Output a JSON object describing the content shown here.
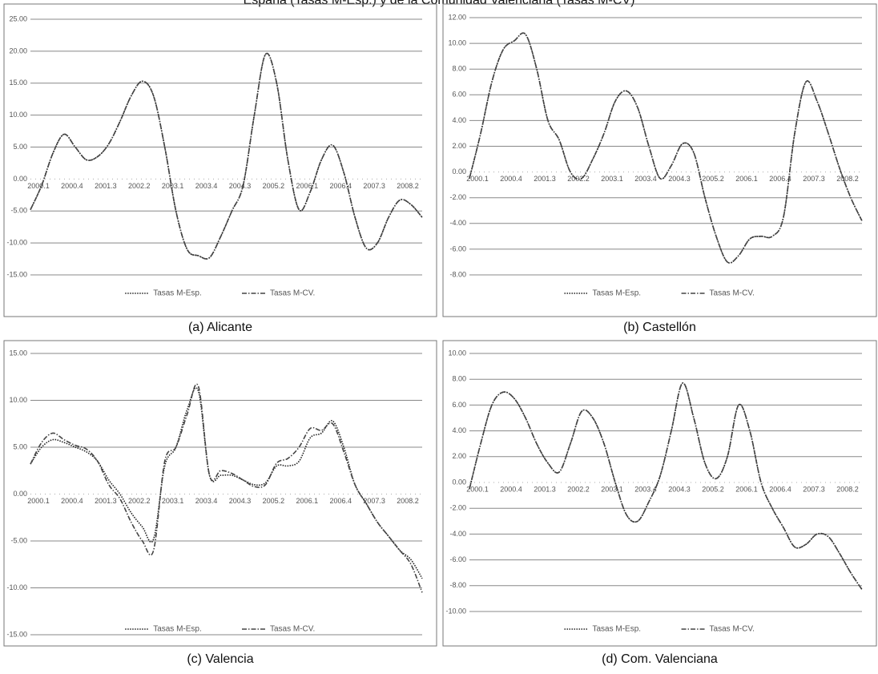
{
  "title": "España (Tasas M-Esp.) y de la Comunidad Valenciana (Tasas M-CV)",
  "chart_data": [
    {
      "type": "line",
      "caption": "(a) Alicante",
      "categories": [
        "2000.1",
        null,
        null,
        "2000.4",
        null,
        null,
        "2001.3",
        null,
        null,
        "2002.2",
        null,
        null,
        "2003.1",
        null,
        null,
        "2003.4",
        null,
        null,
        "2004.3",
        null,
        null,
        "2005.2",
        null,
        null,
        "2006.1",
        null,
        null,
        "2006.4",
        null,
        null,
        "2007.3",
        null,
        null,
        "2008.2",
        null,
        null
      ],
      "series": [
        {
          "name": "Tasas M-Esp.",
          "color": "#222222",
          "dash": "dotted",
          "values": [
            -4.8,
            -1,
            4,
            7,
            5,
            3,
            3.5,
            5.5,
            9,
            13,
            15.3,
            13,
            5,
            -5,
            -11,
            -12,
            -12.3,
            -9,
            -5,
            -1,
            10,
            19.5,
            15,
            3,
            -4.8,
            -2,
            3,
            5.3,
            1,
            -6,
            -10.8,
            -10,
            -6,
            -3.3,
            -4,
            -6
          ]
        },
        {
          "name": "Tasas M-CV.",
          "color": "#444444",
          "dash": "dashdot",
          "values": [
            -4.8,
            -1,
            4,
            7,
            5,
            3,
            3.5,
            5.5,
            9,
            13,
            15.3,
            13,
            5,
            -5,
            -11,
            -12,
            -12.3,
            -9,
            -5,
            -1,
            10,
            19.5,
            15,
            3,
            -4.8,
            -2,
            3,
            5.3,
            1,
            -6,
            -10.8,
            -10,
            -6,
            -3.3,
            -4,
            -6
          ]
        }
      ],
      "ylim": [
        -15,
        25
      ],
      "yticks": [
        {
          "value": -15,
          "label": "-15.00"
        },
        {
          "value": -10,
          "label": "-10.00"
        },
        {
          "value": -5,
          "label": "-5.00"
        },
        {
          "value": 0,
          "label": "0.00"
        },
        {
          "value": 5,
          "label": "5.00"
        },
        {
          "value": 10,
          "label": "10.00"
        },
        {
          "value": 15,
          "label": "15.00"
        },
        {
          "value": 20,
          "label": "20.00"
        },
        {
          "value": 25,
          "label": "25.00"
        }
      ],
      "grid": true,
      "legend": "bottom"
    },
    {
      "type": "line",
      "caption": "(b) Castellón",
      "categories": [
        "2000.1",
        null,
        null,
        "2000.4",
        null,
        null,
        "2001.3",
        null,
        null,
        "2002.2",
        null,
        null,
        "2003.1",
        null,
        null,
        "2003.4",
        null,
        null,
        "2004.3",
        null,
        null,
        "2005.2",
        null,
        null,
        "2006.1",
        null,
        null,
        "2006.4",
        null,
        null,
        "2007.3",
        null,
        null,
        "2008.2",
        null,
        null
      ],
      "series": [
        {
          "name": "Tasas M-Esp.",
          "color": "#222222",
          "dash": "dotted",
          "values": [
            -0.5,
            3,
            7,
            9.5,
            10.2,
            10.7,
            8,
            4,
            2.5,
            0,
            -0.5,
            1,
            3,
            5.5,
            6.3,
            5,
            2,
            -0.5,
            0.5,
            2.2,
            1.5,
            -2,
            -5,
            -7,
            -6.5,
            -5.2,
            -5,
            -5,
            -3.5,
            3,
            7,
            5.5,
            3,
            0.3,
            -2,
            -3.8
          ]
        },
        {
          "name": "Tasas M-CV.",
          "color": "#444444",
          "dash": "dashdot",
          "values": [
            -0.5,
            3,
            7,
            9.5,
            10.2,
            10.7,
            8,
            4,
            2.5,
            0,
            -0.5,
            1,
            3,
            5.5,
            6.3,
            5,
            2,
            -0.5,
            0.5,
            2.2,
            1.5,
            -2,
            -5,
            -7,
            -6.5,
            -5.2,
            -5,
            -5,
            -3.5,
            3,
            7,
            5.5,
            3,
            0.3,
            -2,
            -3.8
          ]
        }
      ],
      "ylim": [
        -8,
        12
      ],
      "yticks": [
        {
          "value": -8,
          "label": "-8.00"
        },
        {
          "value": -6,
          "label": "-6.00"
        },
        {
          "value": -4,
          "label": "-4.00"
        },
        {
          "value": -2,
          "label": "-2.00"
        },
        {
          "value": 0,
          "label": "0.00"
        },
        {
          "value": 2,
          "label": "2.00"
        },
        {
          "value": 4,
          "label": "4.00"
        },
        {
          "value": 6,
          "label": "6.00"
        },
        {
          "value": 8,
          "label": "8.00"
        },
        {
          "value": 10,
          "label": "10.00"
        },
        {
          "value": 12,
          "label": "12.00"
        }
      ],
      "grid": true,
      "legend": "bottom"
    },
    {
      "type": "line",
      "caption": "(c) Valencia",
      "categories": [
        "2000.1",
        null,
        null,
        "2000.4",
        null,
        null,
        "2001.3",
        null,
        null,
        "2002.2",
        null,
        null,
        "2003.1",
        null,
        null,
        "2003.4",
        null,
        null,
        "2004.3",
        null,
        null,
        "2005.2",
        null,
        null,
        "2006.1",
        null,
        null,
        "2006.4",
        null,
        null,
        "2007.3",
        null,
        null,
        "2008.2",
        null,
        null
      ],
      "series": [
        {
          "name": "Tasas M-Esp.",
          "color": "#222222",
          "dash": "dotted",
          "values": [
            3.2,
            5,
            5.8,
            5.5,
            5,
            4.5,
            3.5,
            1.5,
            0,
            -2,
            -3.5,
            -4.8,
            3,
            5,
            9,
            11,
            2,
            2,
            2,
            1.5,
            1,
            1.2,
            3,
            3,
            3.5,
            6,
            6.5,
            7.8,
            5,
            1,
            -1,
            -3,
            -4.5,
            -6,
            -7,
            -9
          ]
        },
        {
          "name": "Tasas M-CV.",
          "color": "#444444",
          "dash": "dashdot",
          "values": [
            3.2,
            5.5,
            6.5,
            5.8,
            5.2,
            4.8,
            3.5,
            1,
            -0.5,
            -3,
            -5,
            -6,
            3.5,
            5,
            8.5,
            11.5,
            2,
            2.5,
            2.2,
            1.5,
            0.8,
            1,
            3.3,
            3.8,
            5,
            7,
            6.8,
            7.5,
            4.5,
            1,
            -1,
            -3,
            -4.5,
            -6,
            -7.5,
            -10.5
          ]
        }
      ],
      "ylim": [
        -15,
        15
      ],
      "yticks": [
        {
          "value": -15,
          "label": "-15.00"
        },
        {
          "value": -10,
          "label": "-10.00"
        },
        {
          "value": -5,
          "label": "-5.00"
        },
        {
          "value": 0,
          "label": "0.00"
        },
        {
          "value": 5,
          "label": "5.00"
        },
        {
          "value": 10,
          "label": "10.00"
        },
        {
          "value": 15,
          "label": "15.00"
        }
      ],
      "grid": true,
      "legend": "bottom"
    },
    {
      "type": "line",
      "caption": "(d) Com. Valenciana",
      "categories": [
        "2000.1",
        null,
        null,
        "2000.4",
        null,
        null,
        "2001.3",
        null,
        null,
        "2002.2",
        null,
        null,
        "2003.1",
        null,
        null,
        "2003.4",
        null,
        null,
        "2004.3",
        null,
        null,
        "2005.2",
        null,
        null,
        "2006.1",
        null,
        null,
        "2006.4",
        null,
        null,
        "2007.3",
        null,
        null,
        "2008.2",
        null,
        null
      ],
      "series": [
        {
          "name": "Tasas M-Esp.",
          "color": "#222222",
          "dash": "dotted",
          "values": [
            -0.5,
            3,
            6,
            7,
            6.5,
            5,
            3,
            1.5,
            0.8,
            3,
            5.5,
            5,
            3,
            0,
            -2.5,
            -3,
            -1.5,
            0.5,
            4,
            7.7,
            5,
            1.5,
            0.3,
            2,
            6,
            4,
            0,
            -2,
            -3.5,
            -5,
            -4.8,
            -4,
            -4.2,
            -5.5,
            -7,
            -8.3
          ]
        },
        {
          "name": "Tasas M-CV.",
          "color": "#444444",
          "dash": "dashdot",
          "values": [
            -0.5,
            3,
            6,
            7,
            6.5,
            5,
            3,
            1.5,
            0.8,
            3,
            5.5,
            5,
            3,
            0,
            -2.5,
            -3,
            -1.5,
            0.5,
            4,
            7.7,
            5,
            1.5,
            0.3,
            2,
            6,
            4,
            0,
            -2,
            -3.5,
            -5,
            -4.8,
            -4,
            -4.2,
            -5.5,
            -7,
            -8.3
          ]
        }
      ],
      "ylim": [
        -10,
        10
      ],
      "yticks": [
        {
          "value": -10,
          "label": "-10.00"
        },
        {
          "value": -8,
          "label": "-8.00"
        },
        {
          "value": -6,
          "label": "-6.00"
        },
        {
          "value": -4,
          "label": "-4.00"
        },
        {
          "value": -2,
          "label": "-2.00"
        },
        {
          "value": 0,
          "label": "0.00"
        },
        {
          "value": 2,
          "label": "2.00"
        },
        {
          "value": 4,
          "label": "4.00"
        },
        {
          "value": 6,
          "label": "6.00"
        },
        {
          "value": 8,
          "label": "8.00"
        },
        {
          "value": 10,
          "label": "10.00"
        }
      ],
      "grid": true,
      "legend": "bottom"
    }
  ]
}
